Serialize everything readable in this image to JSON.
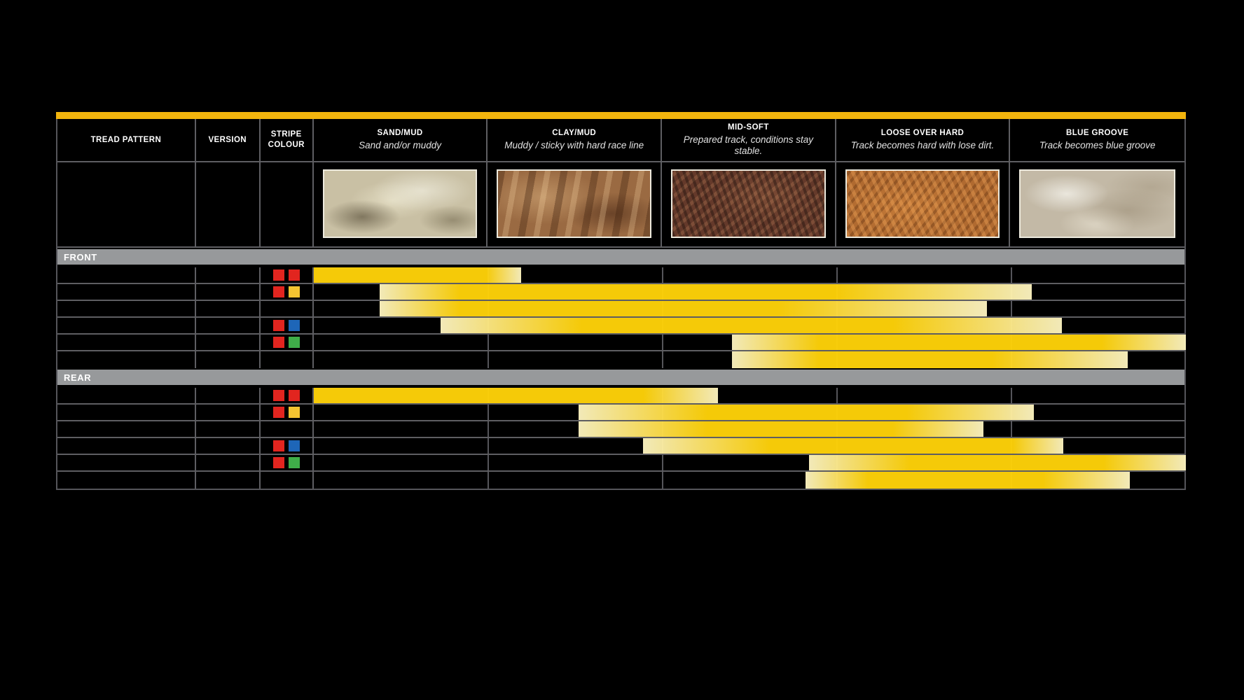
{
  "colors": {
    "background": "#000000",
    "accent_bar": "#f2b40d",
    "section_bar": "#97999b",
    "gridline": "#5e5e62",
    "bar_solid": "#ffd208",
    "bar_pale": "#fcf3c0",
    "photo_frame": "#edeade"
  },
  "stripe_palette": {
    "red": "#e2251f",
    "yellow": "#f4c431",
    "blue": "#1e66b8",
    "green": "#3fae49"
  },
  "header": {
    "tread_pattern": "TREAD PATTERN",
    "version": "VERSION",
    "stripe_line1": "STRIPE",
    "stripe_line2": "COLOUR"
  },
  "chart_data": {
    "type": "area",
    "description": "Tyre tread pattern suitability ranges across track conditions; bar start/end values are in condition-column units (0 = left edge of SAND/MUD, 5 = right edge of BLUE GROOVE); solid_from/solid_to mark where the yellow band is fully saturated, fading to pale yellow outside that span.",
    "conditions": [
      {
        "title": "SAND/MUD",
        "subtitle": "Sand and/or muddy",
        "photo": "sand"
      },
      {
        "title": "CLAY/MUD",
        "subtitle": "Muddy / sticky with hard race line",
        "photo": "clay"
      },
      {
        "title": "MID-SOFT",
        "subtitle": "Prepared track, conditions stay stable.",
        "photo": "mid"
      },
      {
        "title": "LOOSE OVER HARD",
        "subtitle": "Track becomes hard with lose dirt.",
        "photo": "loose"
      },
      {
        "title": "BLUE GROOVE",
        "subtitle": "Track becomes blue groove",
        "photo": "blue"
      }
    ],
    "sections": [
      {
        "label": "FRONT",
        "rows": [
          {
            "stripes": [
              "red",
              "red"
            ],
            "start": 0.0,
            "solid_from": 0.0,
            "solid_to": 0.99,
            "end": 1.19
          },
          {
            "stripes": [
              "red",
              "yellow"
            ],
            "start": 0.38,
            "solid_from": 0.84,
            "solid_to": 2.99,
            "end": 4.12
          },
          {
            "stripes": [],
            "start": 0.38,
            "solid_from": 0.84,
            "solid_to": 2.66,
            "end": 3.86
          },
          {
            "stripes": [
              "red",
              "blue"
            ],
            "start": 0.73,
            "solid_from": 1.54,
            "solid_to": 3.32,
            "end": 4.29
          },
          {
            "stripes": [
              "red",
              "green"
            ],
            "start": 2.4,
            "solid_from": 2.9,
            "solid_to": 4.52,
            "end": 5.0
          },
          {
            "stripes": [],
            "start": 2.4,
            "solid_from": 2.9,
            "solid_to": 3.89,
            "end": 4.67
          }
        ]
      },
      {
        "label": "REAR",
        "rows": [
          {
            "stripes": [
              "red",
              "red"
            ],
            "start": 0.0,
            "solid_from": 0.0,
            "solid_to": 1.89,
            "end": 2.32
          },
          {
            "stripes": [
              "red",
              "yellow"
            ],
            "start": 1.52,
            "solid_from": 2.26,
            "solid_to": 3.4,
            "end": 4.13
          },
          {
            "stripes": [],
            "start": 1.52,
            "solid_from": 2.26,
            "solid_to": 3.32,
            "end": 3.84
          },
          {
            "stripes": [
              "red",
              "blue"
            ],
            "start": 1.89,
            "solid_from": 2.62,
            "solid_to": 4.01,
            "end": 4.3
          },
          {
            "stripes": [
              "red",
              "green"
            ],
            "start": 2.84,
            "solid_from": 3.42,
            "solid_to": 4.53,
            "end": 5.0
          },
          {
            "stripes": [],
            "start": 2.82,
            "solid_from": 3.18,
            "solid_to": 4.18,
            "end": 4.68
          }
        ]
      }
    ]
  }
}
